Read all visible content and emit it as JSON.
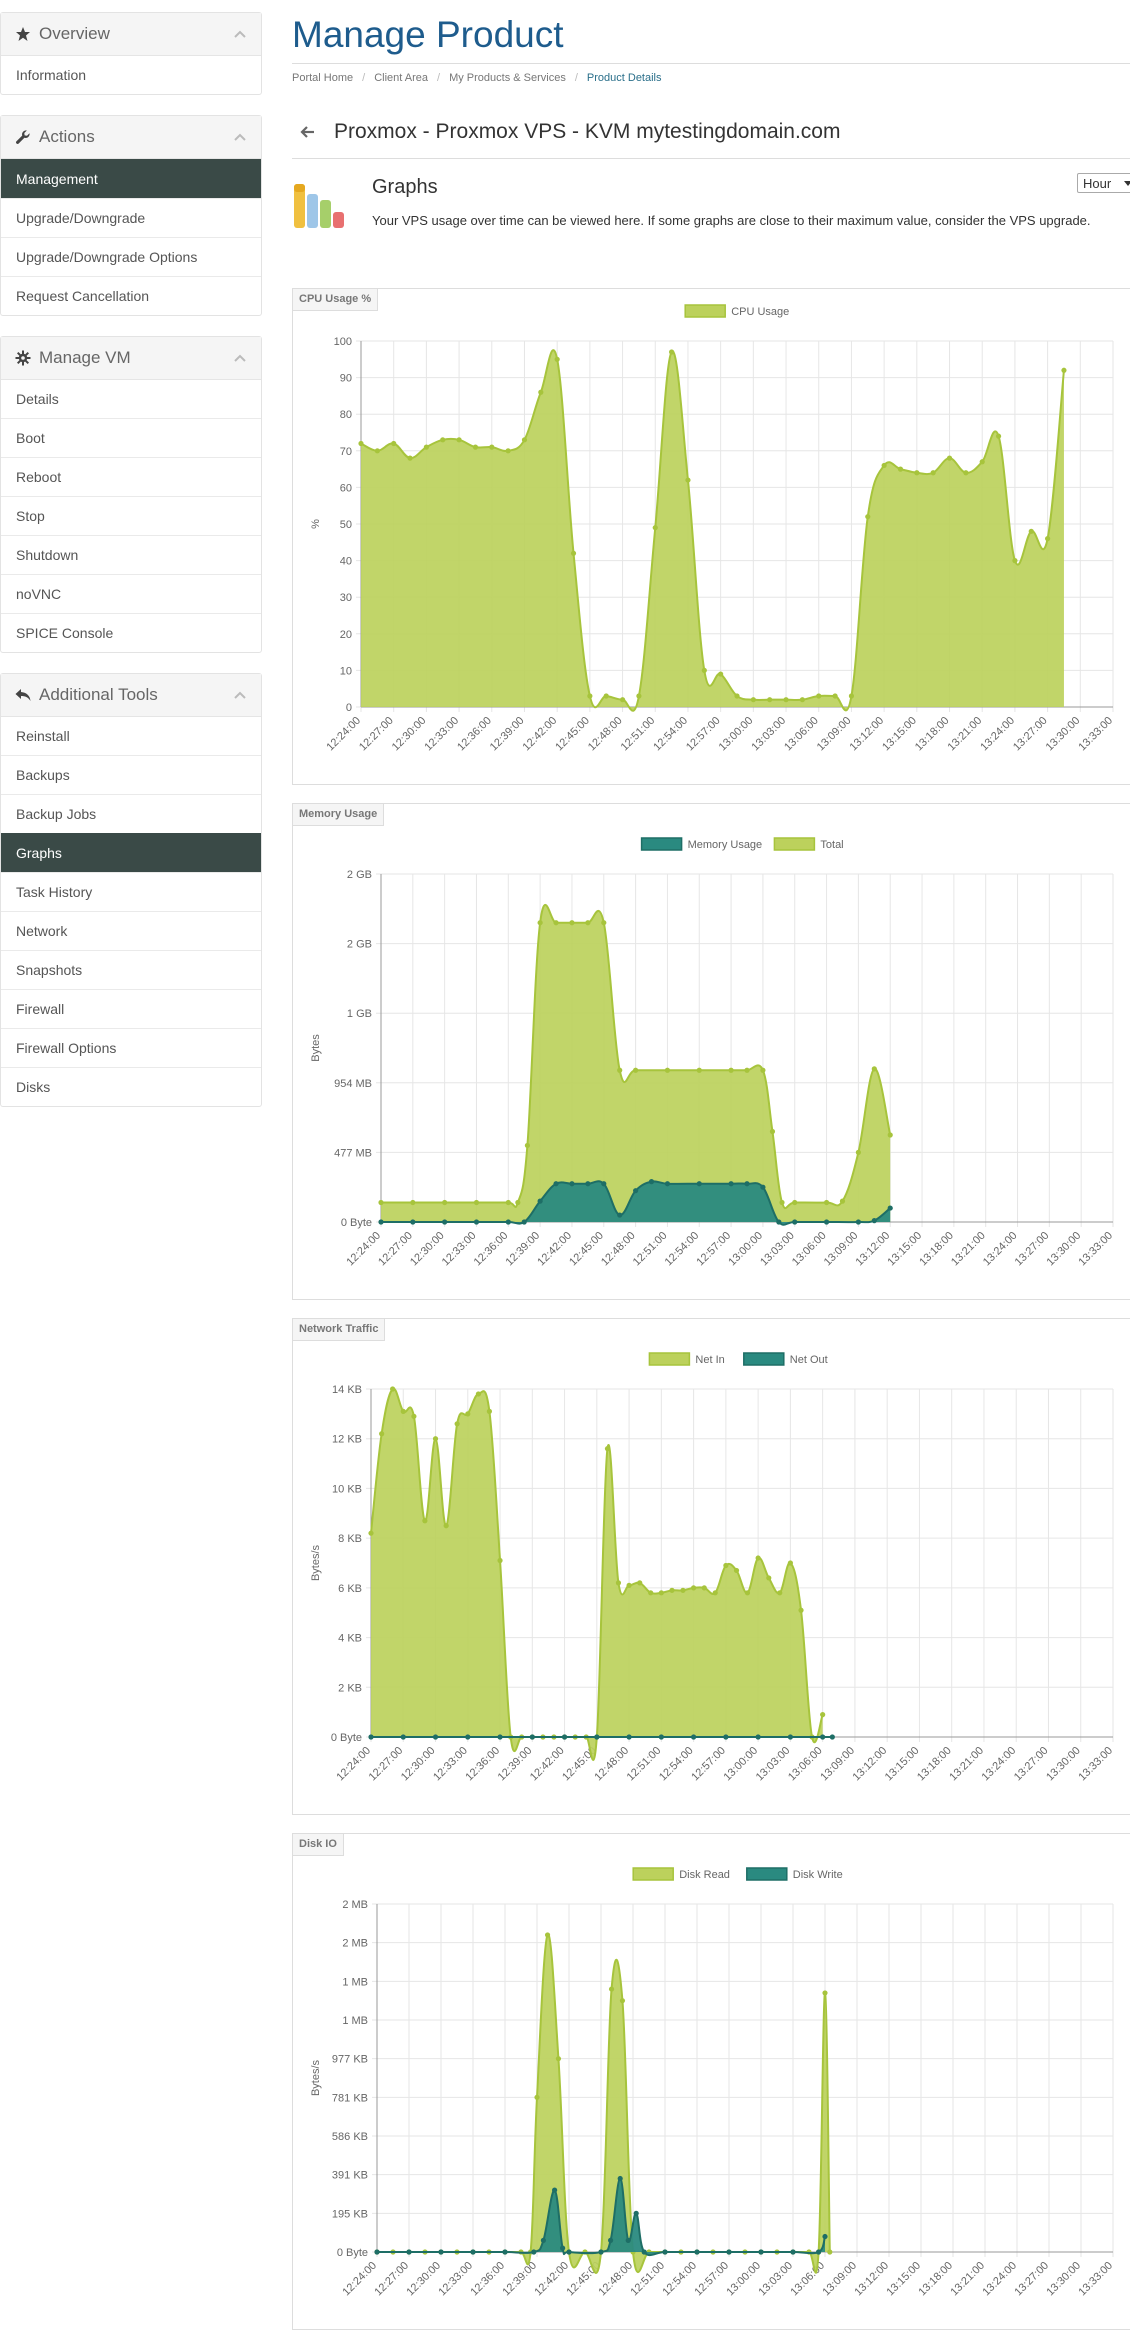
{
  "sidebar": {
    "overview": {
      "title": "Overview",
      "items": [
        "Information"
      ]
    },
    "actions": {
      "title": "Actions",
      "items": [
        "Management",
        "Upgrade/Downgrade",
        "Upgrade/Downgrade Options",
        "Request Cancellation"
      ]
    },
    "manage_vm": {
      "title": "Manage VM",
      "items": [
        "Details",
        "Boot",
        "Reboot",
        "Stop",
        "Shutdown",
        "noVNC",
        "SPICE Console"
      ]
    },
    "tools": {
      "title": "Additional Tools",
      "items": [
        "Reinstall",
        "Backups",
        "Backup Jobs",
        "Graphs",
        "Task History",
        "Network",
        "Snapshots",
        "Firewall",
        "Firewall Options",
        "Disks"
      ]
    }
  },
  "page": {
    "title": "Manage Product",
    "breadcrumb": [
      "Portal Home",
      "Client Area",
      "My Products & Services",
      "Product Details"
    ],
    "product_heading": "Proxmox - Proxmox VPS - KVM mytestingdomain.com",
    "graphs_title": "Graphs",
    "graphs_desc": "Your VPS usage over time can be viewed here. If some graphs are close to their maximum value, consider the VPS upgrade.",
    "timeframe": "Hour"
  },
  "colors": {
    "green": "#a7c43c",
    "green_fill": "#bcd15c",
    "teal": "#2a8a80",
    "accent": "#1e5c8d",
    "active": "#3a4a47"
  },
  "chart_data": [
    {
      "type": "area",
      "panel": "CPU Usage %",
      "ylabel": "%",
      "yticks": [
        "0",
        "10",
        "20",
        "30",
        "40",
        "50",
        "60",
        "70",
        "80",
        "90",
        "100"
      ],
      "ylim": [
        0,
        100
      ],
      "x": [
        "12:24:00",
        "12:27:00",
        "12:30:00",
        "12:33:00",
        "12:36:00",
        "12:39:00",
        "12:42:00",
        "12:45:00",
        "12:48:00",
        "12:51:00",
        "12:54:00",
        "12:57:00",
        "13:00:00",
        "13:03:00",
        "13:06:00",
        "13:09:00",
        "13:12:00",
        "13:15:00",
        "13:18:00",
        "13:21:00",
        "13:24:00",
        "13:27:00",
        "13:30:00",
        "13:33:00"
      ],
      "legend": "top",
      "series": [
        {
          "name": "CPU Usage",
          "color": "green",
          "points": [
            [
              0,
              72
            ],
            [
              0.5,
              70
            ],
            [
              1,
              72
            ],
            [
              1.5,
              68
            ],
            [
              2,
              71
            ],
            [
              2.5,
              73
            ],
            [
              3,
              73
            ],
            [
              3.5,
              71
            ],
            [
              4,
              71
            ],
            [
              4.5,
              70
            ],
            [
              5,
              73
            ],
            [
              5.5,
              86
            ],
            [
              6,
              95
            ],
            [
              6.5,
              42
            ],
            [
              7,
              3
            ],
            [
              7.5,
              3
            ],
            [
              8,
              2
            ],
            [
              8.5,
              3
            ],
            [
              9,
              49
            ],
            [
              9.5,
              97
            ],
            [
              10,
              62
            ],
            [
              10.5,
              10
            ],
            [
              11,
              9
            ],
            [
              11.5,
              3
            ],
            [
              12,
              2
            ],
            [
              12.5,
              2
            ],
            [
              13,
              2
            ],
            [
              13.5,
              2
            ],
            [
              14,
              3
            ],
            [
              14.5,
              3
            ],
            [
              15,
              3
            ],
            [
              15.5,
              52
            ],
            [
              16,
              66
            ],
            [
              16.5,
              65
            ],
            [
              17,
              64
            ],
            [
              17.5,
              64
            ],
            [
              18,
              68
            ],
            [
              18.5,
              64
            ],
            [
              19,
              67
            ],
            [
              19.5,
              74
            ],
            [
              20,
              40
            ],
            [
              20.5,
              48
            ],
            [
              21,
              46
            ],
            [
              21.5,
              92
            ]
          ]
        }
      ]
    },
    {
      "type": "area",
      "panel": "Memory Usage",
      "ylabel": "Bytes",
      "yticks": [
        "0 Byte",
        "477 MB",
        "954 MB",
        "1 GB",
        "2 GB",
        "2 GB"
      ],
      "ylim": [
        0,
        5
      ],
      "x": [
        "12:24:00",
        "12:27:00",
        "12:30:00",
        "12:33:00",
        "12:36:00",
        "12:39:00",
        "12:42:00",
        "12:45:00",
        "12:48:00",
        "12:51:00",
        "12:54:00",
        "12:57:00",
        "13:00:00",
        "13:03:00",
        "13:06:00",
        "13:09:00",
        "13:12:00",
        "13:15:00",
        "13:18:00",
        "13:21:00",
        "13:24:00",
        "13:27:00",
        "13:30:00",
        "13:33:00"
      ],
      "legend": "top",
      "series": [
        {
          "name": "Memory Usage",
          "color": "teal",
          "points": [
            [
              0,
              0
            ],
            [
              1,
              0
            ],
            [
              2,
              0
            ],
            [
              3,
              0
            ],
            [
              4,
              0
            ],
            [
              4.5,
              0
            ],
            [
              5,
              0.3
            ],
            [
              5.5,
              0.55
            ],
            [
              6,
              0.55
            ],
            [
              6.5,
              0.55
            ],
            [
              7,
              0.55
            ],
            [
              7.5,
              0.1
            ],
            [
              8,
              0.45
            ],
            [
              8.5,
              0.58
            ],
            [
              9,
              0.55
            ],
            [
              10,
              0.55
            ],
            [
              11,
              0.55
            ],
            [
              11.5,
              0.55
            ],
            [
              12,
              0.5
            ],
            [
              12.5,
              0
            ],
            [
              13,
              0
            ],
            [
              14,
              0
            ],
            [
              15,
              0
            ],
            [
              15.5,
              0.02
            ],
            [
              16,
              0.2
            ]
          ]
        },
        {
          "name": "Total",
          "color": "green",
          "points": [
            [
              0,
              0.28
            ],
            [
              1,
              0.28
            ],
            [
              2,
              0.28
            ],
            [
              3,
              0.28
            ],
            [
              4,
              0.28
            ],
            [
              4.3,
              0.28
            ],
            [
              4.6,
              1.1
            ],
            [
              5,
              4.3
            ],
            [
              5.5,
              4.3
            ],
            [
              6,
              4.3
            ],
            [
              6.5,
              4.3
            ],
            [
              7,
              4.3
            ],
            [
              7.5,
              2.18
            ],
            [
              8,
              2.18
            ],
            [
              9,
              2.18
            ],
            [
              10,
              2.18
            ],
            [
              11,
              2.18
            ],
            [
              11.5,
              2.18
            ],
            [
              12,
              2.18
            ],
            [
              12.3,
              1.3
            ],
            [
              12.6,
              0.28
            ],
            [
              13,
              0.28
            ],
            [
              14,
              0.28
            ],
            [
              14.5,
              0.3
            ],
            [
              15,
              1.0
            ],
            [
              15.5,
              2.2
            ],
            [
              16,
              1.25
            ]
          ]
        }
      ]
    },
    {
      "type": "area",
      "panel": "Network Traffic",
      "ylabel": "Bytes/s",
      "yticks": [
        "0 Byte",
        "2 KB",
        "4 KB",
        "6 KB",
        "8 KB",
        "10 KB",
        "12 KB",
        "14 KB"
      ],
      "ylim": [
        0,
        14
      ],
      "x": [
        "12:24:00",
        "12:27:00",
        "12:30:00",
        "12:33:00",
        "12:36:00",
        "12:39:00",
        "12:42:00",
        "12:45:00",
        "12:48:00",
        "12:51:00",
        "12:54:00",
        "12:57:00",
        "13:00:00",
        "13:03:00",
        "13:06:00",
        "13:09:00",
        "13:12:00",
        "13:15:00",
        "13:18:00",
        "13:21:00",
        "13:24:00",
        "13:27:00",
        "13:30:00",
        "13:33:00"
      ],
      "legend": "top",
      "series": [
        {
          "name": "Net In",
          "color": "green",
          "points": [
            [
              0,
              8.2
            ],
            [
              0.33,
              12.2
            ],
            [
              0.67,
              14
            ],
            [
              1,
              13.1
            ],
            [
              1.33,
              12.9
            ],
            [
              1.67,
              8.7
            ],
            [
              2,
              12
            ],
            [
              2.33,
              8.5
            ],
            [
              2.67,
              12.6
            ],
            [
              3,
              13
            ],
            [
              3.33,
              13.8
            ],
            [
              3.67,
              13.1
            ],
            [
              4,
              7.1
            ],
            [
              4.33,
              0
            ],
            [
              4.67,
              0
            ],
            [
              5,
              0
            ],
            [
              5.33,
              0
            ],
            [
              5.67,
              0
            ],
            [
              6,
              0
            ],
            [
              6.33,
              0
            ],
            [
              6.67,
              0
            ],
            [
              7,
              0
            ],
            [
              7.33,
              11.6
            ],
            [
              7.67,
              6.2
            ],
            [
              8,
              6.1
            ],
            [
              8.33,
              6.2
            ],
            [
              8.67,
              5.8
            ],
            [
              9,
              5.8
            ],
            [
              9.33,
              5.9
            ],
            [
              9.67,
              5.9
            ],
            [
              10,
              6.0
            ],
            [
              10.33,
              6.0
            ],
            [
              10.67,
              5.8
            ],
            [
              11,
              6.9
            ],
            [
              11.33,
              6.7
            ],
            [
              11.67,
              5.8
            ],
            [
              12,
              7.2
            ],
            [
              12.33,
              6.4
            ],
            [
              12.67,
              5.8
            ],
            [
              13,
              7.0
            ],
            [
              13.33,
              5.1
            ],
            [
              13.67,
              0
            ],
            [
              14,
              0.9
            ]
          ]
        },
        {
          "name": "Net Out",
          "color": "teal",
          "points": [
            [
              0,
              0
            ],
            [
              1,
              0
            ],
            [
              2,
              0
            ],
            [
              3,
              0
            ],
            [
              4,
              0
            ],
            [
              5,
              0
            ],
            [
              6,
              0
            ],
            [
              7,
              0
            ],
            [
              8,
              0
            ],
            [
              9,
              0
            ],
            [
              10,
              0
            ],
            [
              11,
              0
            ],
            [
              12,
              0
            ],
            [
              13,
              0
            ],
            [
              14,
              0
            ],
            [
              14.3,
              0
            ]
          ]
        }
      ]
    },
    {
      "type": "area",
      "panel": "Disk IO",
      "ylabel": "Bytes/s",
      "yticks": [
        "0 Byte",
        "195 KB",
        "391 KB",
        "586 KB",
        "781 KB",
        "977 KB",
        "1 MB",
        "1 MB",
        "2 MB",
        "2 MB"
      ],
      "ylim": [
        0,
        9
      ],
      "x": [
        "12:24:00",
        "12:27:00",
        "12:30:00",
        "12:33:00",
        "12:36:00",
        "12:39:00",
        "12:42:00",
        "12:45:00",
        "12:48:00",
        "12:51:00",
        "12:54:00",
        "12:57:00",
        "13:00:00",
        "13:03:00",
        "13:06:00",
        "13:09:00",
        "13:12:00",
        "13:15:00",
        "13:18:00",
        "13:21:00",
        "13:24:00",
        "13:27:00",
        "13:30:00",
        "13:33:00"
      ],
      "legend": "top",
      "series": [
        {
          "name": "Disk Read",
          "color": "green",
          "points": [
            [
              0,
              0
            ],
            [
              0.5,
              0
            ],
            [
              1,
              0
            ],
            [
              1.5,
              0
            ],
            [
              2,
              0
            ],
            [
              2.5,
              0
            ],
            [
              3,
              0
            ],
            [
              3.5,
              0
            ],
            [
              4,
              0
            ],
            [
              4.5,
              0
            ],
            [
              4.8,
              0
            ],
            [
              5,
              4
            ],
            [
              5.33,
              8.2
            ],
            [
              5.67,
              5
            ],
            [
              6,
              0
            ],
            [
              6.5,
              0
            ],
            [
              7,
              0
            ],
            [
              7.33,
              6.8
            ],
            [
              7.67,
              6.5
            ],
            [
              8,
              0
            ],
            [
              8.5,
              0
            ],
            [
              9,
              0
            ],
            [
              9.5,
              0
            ],
            [
              10,
              0
            ],
            [
              10.5,
              0
            ],
            [
              11,
              0
            ],
            [
              11.5,
              0
            ],
            [
              12,
              0
            ],
            [
              12.5,
              0
            ],
            [
              13,
              0
            ],
            [
              13.5,
              0
            ],
            [
              13.8,
              0
            ],
            [
              14,
              6.7
            ],
            [
              14.15,
              0
            ]
          ]
        },
        {
          "name": "Disk Write",
          "color": "teal",
          "points": [
            [
              0,
              0
            ],
            [
              1,
              0
            ],
            [
              2,
              0
            ],
            [
              3,
              0
            ],
            [
              4,
              0
            ],
            [
              4.9,
              0
            ],
            [
              5.2,
              0.3
            ],
            [
              5.55,
              1.6
            ],
            [
              5.8,
              0.1
            ],
            [
              6,
              0
            ],
            [
              7,
              0
            ],
            [
              7.3,
              0.3
            ],
            [
              7.6,
              1.9
            ],
            [
              7.85,
              0.3
            ],
            [
              8.1,
              1.0
            ],
            [
              8.35,
              0
            ],
            [
              9,
              0
            ],
            [
              10,
              0
            ],
            [
              11,
              0
            ],
            [
              12,
              0
            ],
            [
              13,
              0
            ],
            [
              13.8,
              0
            ],
            [
              14,
              0.4
            ]
          ]
        }
      ]
    }
  ]
}
